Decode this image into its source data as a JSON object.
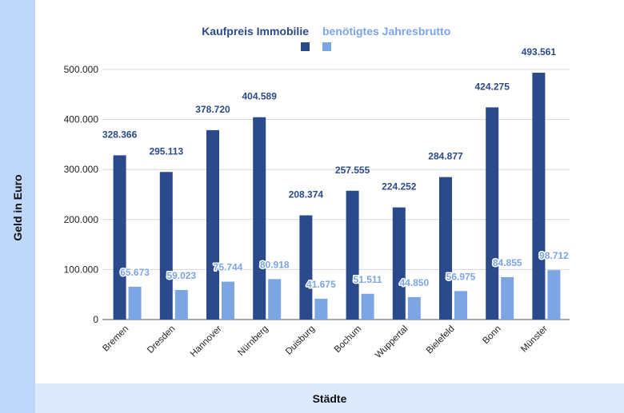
{
  "chart_data": {
    "type": "bar",
    "title": "",
    "xlabel": "Städte",
    "ylabel": "Geld in Euro",
    "ylim": [
      0,
      500000
    ],
    "yticks": [
      0,
      100000,
      200000,
      300000,
      400000,
      500000
    ],
    "ytick_labels": [
      "0",
      "100.000",
      "200.000",
      "300.000",
      "400.000",
      "500.000"
    ],
    "grid": true,
    "legend_position": "top-center",
    "categories": [
      "Bremen",
      "Dresden",
      "Hannover",
      "Nürnberg",
      "Duisburg",
      "Bochum",
      "Wuppertal",
      "Bielefeld",
      "Bonn",
      "Münster"
    ],
    "series": [
      {
        "name": "Kaufpreis Immobilie",
        "color": "#2b4a8b",
        "values": [
          328366,
          295113,
          378720,
          404589,
          208374,
          257555,
          224252,
          284877,
          424275,
          493561
        ],
        "labels": [
          "328.366",
          "295.113",
          "378.720",
          "404.589",
          "208.374",
          "257.555",
          "224.252",
          "284.877",
          "424.275",
          "493.561"
        ]
      },
      {
        "name": "benötigtes Jahresbrutto",
        "color": "#7ba5e3",
        "values": [
          65673,
          59023,
          75744,
          80918,
          41675,
          51511,
          44850,
          56975,
          84855,
          98712
        ],
        "labels": [
          "65.673",
          "59.023",
          "75.744",
          "80.918",
          "41.675",
          "51.511",
          "44.850",
          "56.975",
          "84.855",
          "98.712"
        ]
      }
    ]
  }
}
